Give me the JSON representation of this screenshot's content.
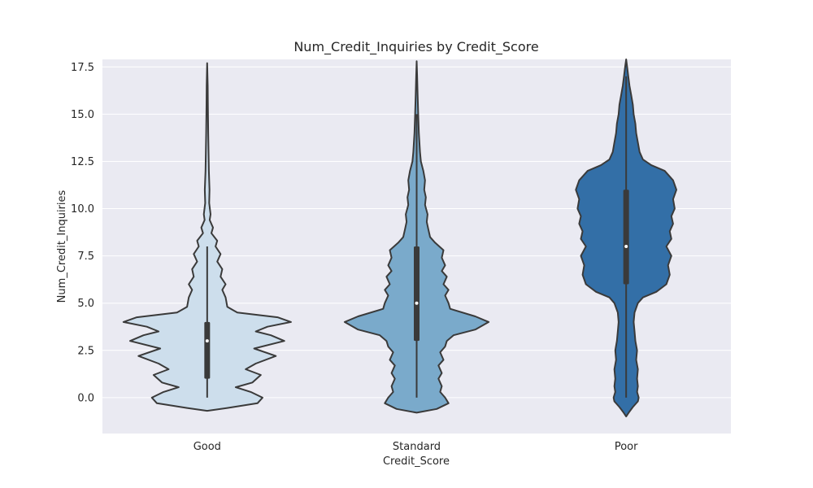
{
  "chart_data": {
    "type": "violin",
    "title": "Num_Credit_Inquiries by Credit_Score",
    "xlabel": "Credit_Score",
    "ylabel": "Num_Credit_Inquiries",
    "categories": [
      "Good",
      "Standard",
      "Poor"
    ],
    "ylim": [
      -1.9,
      17.9
    ],
    "yticks": [
      0.0,
      2.5,
      5.0,
      7.5,
      10.0,
      12.5,
      15.0,
      17.5
    ],
    "ytick_labels": [
      "0.0",
      "2.5",
      "5.0",
      "7.5",
      "10.0",
      "12.5",
      "15.0",
      "17.5"
    ],
    "grid": true,
    "colors": {
      "background": "#eaeaf2",
      "grid": "#ffffff",
      "outline": "#3a3a3a",
      "box": "#3a3a3a",
      "median": "#ffffff",
      "Good": "#cddeec",
      "Standard": "#7aaacb",
      "Poor": "#336fa7"
    },
    "violins": [
      {
        "category": "Good",
        "whisker_low": 0,
        "q1": 1,
        "median": 3,
        "q3": 4,
        "whisker_high": 8,
        "min": -0.7,
        "max": 17.7,
        "profile": [
          [
            -0.7,
            0.0
          ],
          [
            -0.55,
            0.12
          ],
          [
            -0.3,
            0.3
          ],
          [
            0.0,
            0.33
          ],
          [
            0.3,
            0.26
          ],
          [
            0.55,
            0.17
          ],
          [
            0.8,
            0.27
          ],
          [
            1.2,
            0.32
          ],
          [
            1.5,
            0.23
          ],
          [
            1.8,
            0.29
          ],
          [
            2.2,
            0.41
          ],
          [
            2.6,
            0.28
          ],
          [
            3.0,
            0.46
          ],
          [
            3.3,
            0.38
          ],
          [
            3.5,
            0.29
          ],
          [
            3.75,
            0.36
          ],
          [
            4.0,
            0.5
          ],
          [
            4.25,
            0.42
          ],
          [
            4.5,
            0.18
          ],
          [
            4.8,
            0.12
          ],
          [
            5.3,
            0.11
          ],
          [
            5.7,
            0.09
          ],
          [
            6.0,
            0.11
          ],
          [
            6.4,
            0.08
          ],
          [
            6.8,
            0.09
          ],
          [
            7.2,
            0.06
          ],
          [
            7.6,
            0.08
          ],
          [
            8.0,
            0.05
          ],
          [
            8.3,
            0.06
          ],
          [
            8.7,
            0.025
          ],
          [
            9.0,
            0.035
          ],
          [
            9.4,
            0.015
          ],
          [
            9.7,
            0.02
          ],
          [
            10.3,
            0.012
          ],
          [
            11.0,
            0.014
          ],
          [
            12.0,
            0.01
          ],
          [
            13.0,
            0.008
          ],
          [
            14.0,
            0.006
          ],
          [
            15.5,
            0.004
          ],
          [
            16.5,
            0.003
          ],
          [
            17.7,
            0.0
          ]
        ]
      },
      {
        "category": "Standard",
        "whisker_low": 0,
        "q1": 3,
        "median": 5,
        "q3": 8,
        "whisker_high": 15,
        "min": -0.8,
        "max": 17.8,
        "profile": [
          [
            -0.8,
            0.0
          ],
          [
            -0.6,
            0.12
          ],
          [
            -0.3,
            0.19
          ],
          [
            0.0,
            0.17
          ],
          [
            0.3,
            0.14
          ],
          [
            0.6,
            0.15
          ],
          [
            1.0,
            0.13
          ],
          [
            1.3,
            0.15
          ],
          [
            1.7,
            0.13
          ],
          [
            2.0,
            0.16
          ],
          [
            2.4,
            0.14
          ],
          [
            2.7,
            0.17
          ],
          [
            3.0,
            0.18
          ],
          [
            3.3,
            0.22
          ],
          [
            3.6,
            0.35
          ],
          [
            4.0,
            0.43
          ],
          [
            4.3,
            0.35
          ],
          [
            4.7,
            0.2
          ],
          [
            5.0,
            0.19
          ],
          [
            5.4,
            0.17
          ],
          [
            5.7,
            0.19
          ],
          [
            6.0,
            0.16
          ],
          [
            6.4,
            0.18
          ],
          [
            6.7,
            0.15
          ],
          [
            7.0,
            0.17
          ],
          [
            7.4,
            0.15
          ],
          [
            7.8,
            0.16
          ],
          [
            8.2,
            0.11
          ],
          [
            8.5,
            0.08
          ],
          [
            8.9,
            0.07
          ],
          [
            9.3,
            0.06
          ],
          [
            9.7,
            0.065
          ],
          [
            10.2,
            0.05
          ],
          [
            10.6,
            0.055
          ],
          [
            11.0,
            0.045
          ],
          [
            11.5,
            0.05
          ],
          [
            12.0,
            0.04
          ],
          [
            12.5,
            0.025
          ],
          [
            13.0,
            0.02
          ],
          [
            14.0,
            0.013
          ],
          [
            15.0,
            0.009
          ],
          [
            16.0,
            0.006
          ],
          [
            17.0,
            0.003
          ],
          [
            17.8,
            0.0
          ]
        ]
      },
      {
        "category": "Poor",
        "whisker_low": 0,
        "q1": 6,
        "median": 8,
        "q3": 11,
        "whisker_high": 17,
        "min": -1.0,
        "max": 17.9,
        "profile": [
          [
            -1.0,
            0.0
          ],
          [
            -0.8,
            0.015
          ],
          [
            -0.5,
            0.04
          ],
          [
            -0.2,
            0.07
          ],
          [
            0.0,
            0.075
          ],
          [
            0.3,
            0.065
          ],
          [
            0.6,
            0.07
          ],
          [
            1.0,
            0.065
          ],
          [
            1.5,
            0.07
          ],
          [
            2.0,
            0.06
          ],
          [
            2.5,
            0.065
          ],
          [
            3.0,
            0.055
          ],
          [
            3.5,
            0.05
          ],
          [
            4.0,
            0.045
          ],
          [
            4.5,
            0.05
          ],
          [
            5.0,
            0.07
          ],
          [
            5.3,
            0.1
          ],
          [
            5.6,
            0.18
          ],
          [
            6.0,
            0.24
          ],
          [
            6.5,
            0.26
          ],
          [
            7.0,
            0.25
          ],
          [
            7.5,
            0.27
          ],
          [
            8.0,
            0.24
          ],
          [
            8.4,
            0.27
          ],
          [
            8.8,
            0.26
          ],
          [
            9.2,
            0.28
          ],
          [
            9.6,
            0.27
          ],
          [
            10.0,
            0.29
          ],
          [
            10.5,
            0.28
          ],
          [
            11.0,
            0.3
          ],
          [
            11.5,
            0.28
          ],
          [
            12.0,
            0.23
          ],
          [
            12.3,
            0.15
          ],
          [
            12.6,
            0.1
          ],
          [
            13.0,
            0.08
          ],
          [
            13.5,
            0.07
          ],
          [
            14.0,
            0.06
          ],
          [
            14.5,
            0.055
          ],
          [
            15.0,
            0.045
          ],
          [
            15.5,
            0.04
          ],
          [
            16.0,
            0.03
          ],
          [
            16.5,
            0.02
          ],
          [
            17.0,
            0.013
          ],
          [
            17.5,
            0.006
          ],
          [
            17.9,
            0.0
          ]
        ]
      }
    ]
  }
}
